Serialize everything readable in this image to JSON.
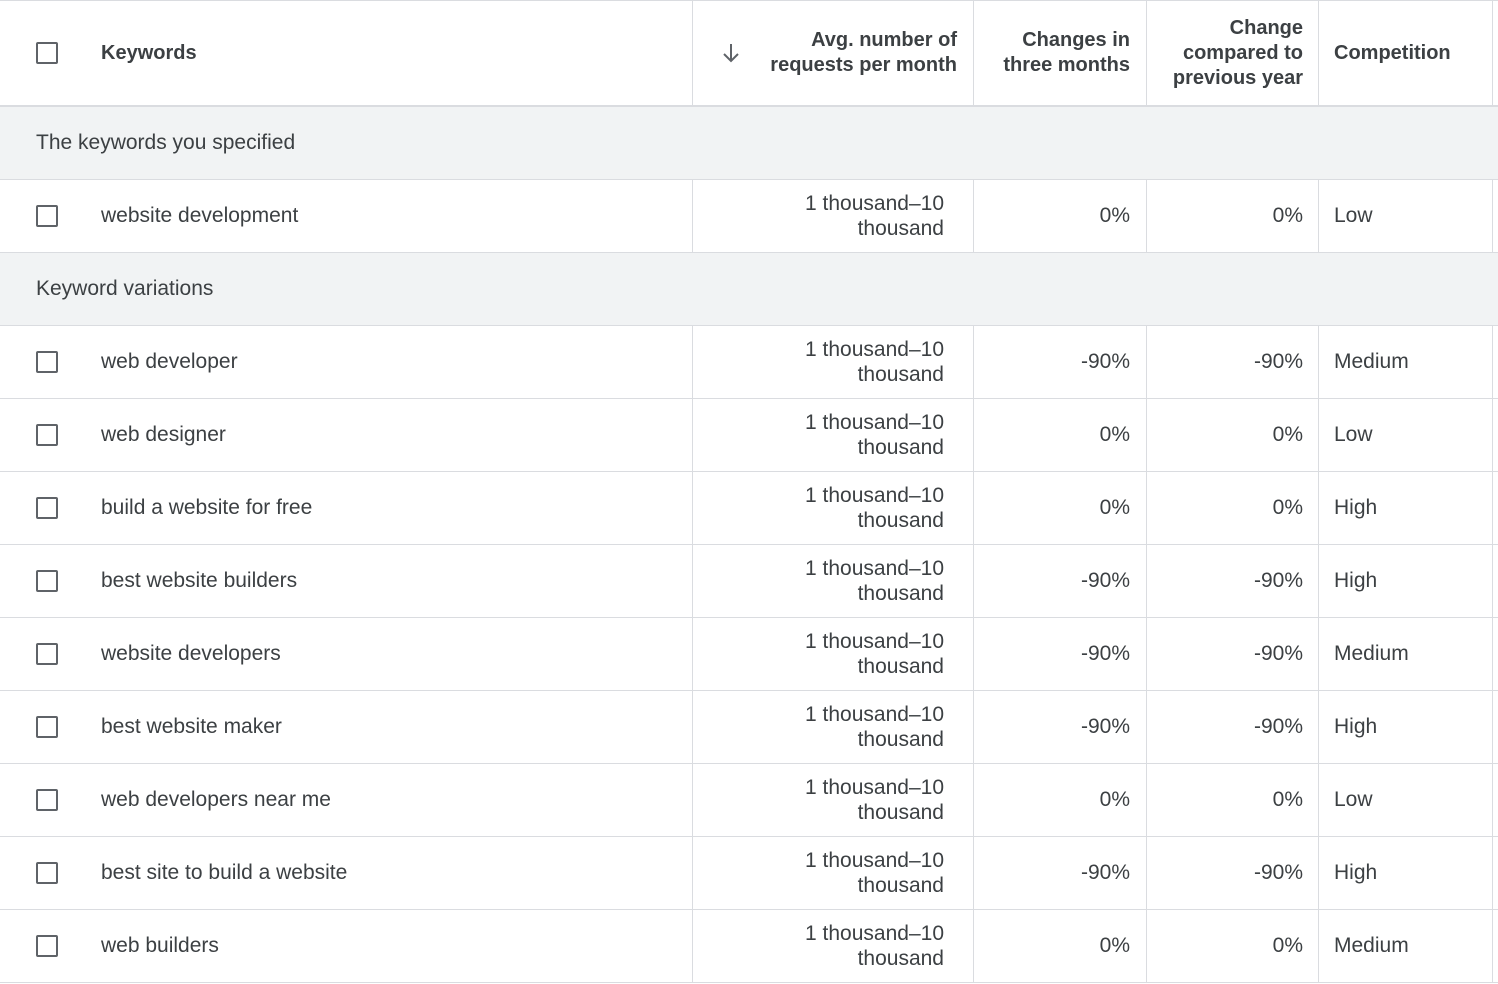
{
  "header": {
    "keywords": "Keywords",
    "avg_line1": "Avg. number of",
    "avg_line2": "requests per month",
    "three_line1": "Changes in",
    "three_line2": "three months",
    "yoy_line1": "Change",
    "yoy_line2": "compared to",
    "yoy_line3": "previous year",
    "competition": "Competition",
    "sort_icon": "arrow-down-icon"
  },
  "sections": [
    {
      "title": "The keywords you specified",
      "rows": [
        {
          "keyword": "website development",
          "avg_line1": "1 thousand–10",
          "avg_line2": "thousand",
          "three": "0%",
          "yoy": "0%",
          "competition": "Low"
        }
      ]
    },
    {
      "title": "Keyword variations",
      "rows": [
        {
          "keyword": "web developer",
          "avg_line1": "1 thousand–10",
          "avg_line2": "thousand",
          "three": "-90%",
          "yoy": "-90%",
          "competition": "Medium"
        },
        {
          "keyword": "web designer",
          "avg_line1": "1 thousand–10",
          "avg_line2": "thousand",
          "three": "0%",
          "yoy": "0%",
          "competition": "Low"
        },
        {
          "keyword": "build a website for free",
          "avg_line1": "1 thousand–10",
          "avg_line2": "thousand",
          "three": "0%",
          "yoy": "0%",
          "competition": "High"
        },
        {
          "keyword": "best website builders",
          "avg_line1": "1 thousand–10",
          "avg_line2": "thousand",
          "three": "-90%",
          "yoy": "-90%",
          "competition": "High"
        },
        {
          "keyword": "website developers",
          "avg_line1": "1 thousand–10",
          "avg_line2": "thousand",
          "three": "-90%",
          "yoy": "-90%",
          "competition": "Medium"
        },
        {
          "keyword": "best website maker",
          "avg_line1": "1 thousand–10",
          "avg_line2": "thousand",
          "three": "-90%",
          "yoy": "-90%",
          "competition": "High"
        },
        {
          "keyword": "web developers near me",
          "avg_line1": "1 thousand–10",
          "avg_line2": "thousand",
          "three": "0%",
          "yoy": "0%",
          "competition": "Low"
        },
        {
          "keyword": "best site to build a website",
          "avg_line1": "1 thousand–10",
          "avg_line2": "thousand",
          "three": "-90%",
          "yoy": "-90%",
          "competition": "High"
        },
        {
          "keyword": "web builders",
          "avg_line1": "1 thousand–10",
          "avg_line2": "thousand",
          "three": "0%",
          "yoy": "0%",
          "competition": "Medium"
        }
      ]
    }
  ]
}
